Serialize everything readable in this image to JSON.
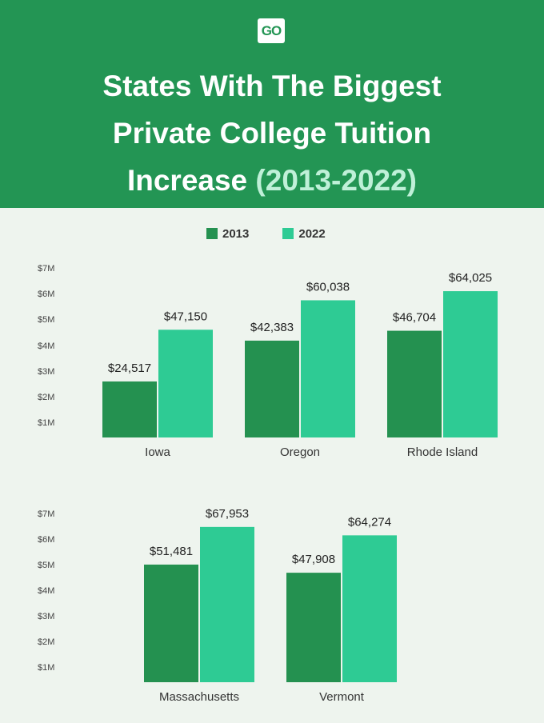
{
  "logo_text": "GO",
  "title": {
    "line1": "States With The Biggest",
    "line2": "Private College Tuition",
    "line3_main": "Increase",
    "line3_accent": "(2013-2022)"
  },
  "colors": {
    "header": "#239554",
    "series_2013": "#249150",
    "series_2022": "#2ecb94",
    "accent": "#bff0d8"
  },
  "legend": [
    "2013",
    "2022"
  ],
  "chart_data": [
    {
      "type": "bar",
      "title": "",
      "categories": [
        "Iowa",
        "Oregon",
        "Rhode Island"
      ],
      "series": [
        {
          "name": "2013",
          "values": [
            24517,
            42383,
            46704
          ],
          "labels": [
            "$24,517",
            "$42,383",
            "$46,704"
          ]
        },
        {
          "name": "2022",
          "values": [
            47150,
            60038,
            64025
          ],
          "labels": [
            "$47,150",
            "$60,038",
            "$64,025"
          ]
        }
      ],
      "y_ticks": [
        "$1M",
        "$2M",
        "$3M",
        "$4M",
        "$5M",
        "$6M",
        "$7M"
      ],
      "ylim": [
        0,
        70000
      ]
    },
    {
      "type": "bar",
      "title": "",
      "categories": [
        "Massachusetts",
        "Vermont"
      ],
      "series": [
        {
          "name": "2013",
          "values": [
            51481,
            47908
          ],
          "labels": [
            "$51,481",
            "$47,908"
          ]
        },
        {
          "name": "2022",
          "values": [
            67953,
            64274
          ],
          "labels": [
            "$67,953",
            "$64,274"
          ]
        }
      ],
      "y_ticks": [
        "$1M",
        "$2M",
        "$3M",
        "$4M",
        "$5M",
        "$6M",
        "$7M"
      ],
      "ylim": [
        0,
        70000
      ]
    }
  ]
}
